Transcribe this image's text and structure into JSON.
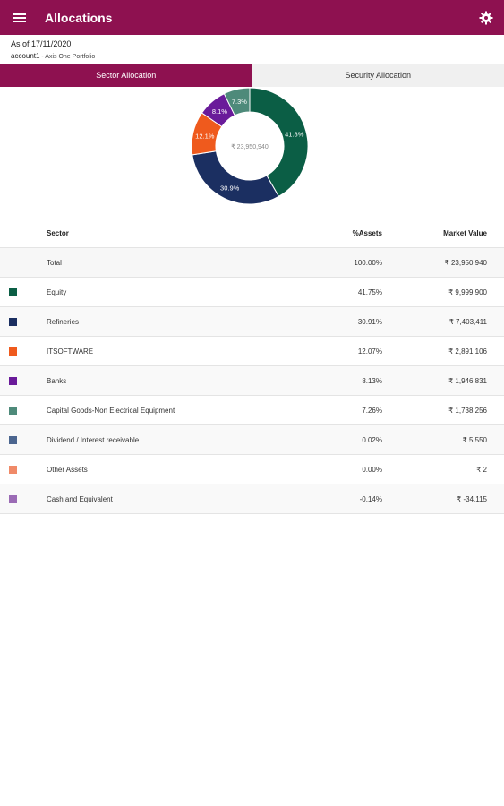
{
  "appbar": {
    "title": "Allocations",
    "menu_icon": "hamburger-menu-icon",
    "settings_icon": "gear-icon"
  },
  "info": {
    "as_of": "As of 17/11/2020",
    "account": "account1",
    "portfolio": " - Axis One Portfolio"
  },
  "tabs": [
    {
      "label": "Sector Allocation",
      "active": true
    },
    {
      "label": "Security Allocation",
      "active": false
    }
  ],
  "chart_data": {
    "type": "pie",
    "variant": "donut",
    "center_label": "₹ 23,950,940",
    "slices": [
      {
        "label": "41.8%",
        "value": 41.75,
        "color": "#0b5e45"
      },
      {
        "label": "30.9%",
        "value": 30.91,
        "color": "#1b2f61"
      },
      {
        "label": "12.1%",
        "value": 12.07,
        "color": "#ef5a1d"
      },
      {
        "label": "8.1%",
        "value": 8.13,
        "color": "#6a1b9a"
      },
      {
        "label": "7.3%",
        "value": 7.26,
        "color": "#4e8a7a"
      }
    ]
  },
  "table": {
    "headers": {
      "sector": "Sector",
      "assets": "%Assets",
      "market_value": "Market Value"
    },
    "total": {
      "sector": "Total",
      "assets": "100.00%",
      "market_value": "₹ 23,950,940"
    },
    "rows": [
      {
        "sector": "Equity",
        "assets": "41.75%",
        "market_value": "₹ 9,999,900",
        "color": "#0b5e45"
      },
      {
        "sector": "Refineries",
        "assets": "30.91%",
        "market_value": "₹ 7,403,411",
        "color": "#1b2f61"
      },
      {
        "sector": "ITSOFTWARE",
        "assets": "12.07%",
        "market_value": "₹ 2,891,106",
        "color": "#ef5a1d"
      },
      {
        "sector": "Banks",
        "assets": "8.13%",
        "market_value": "₹ 1,946,831",
        "color": "#6a1b9a"
      },
      {
        "sector": "Capital Goods-Non Electrical Equipment",
        "assets": "7.26%",
        "market_value": "₹ 1,738,256",
        "color": "#4e8a7a"
      },
      {
        "sector": "Dividend / Interest receivable",
        "assets": "0.02%",
        "market_value": "₹ 5,550",
        "color": "#4c6690"
      },
      {
        "sector": "Other Assets",
        "assets": "0.00%",
        "market_value": "₹ 2",
        "color": "#f08a68"
      },
      {
        "sector": "Cash and Equivalent",
        "assets": "-0.14%",
        "market_value": "₹ -34,115",
        "color": "#9b6bb5"
      }
    ]
  },
  "colors": {
    "accent": "#8e1150"
  }
}
